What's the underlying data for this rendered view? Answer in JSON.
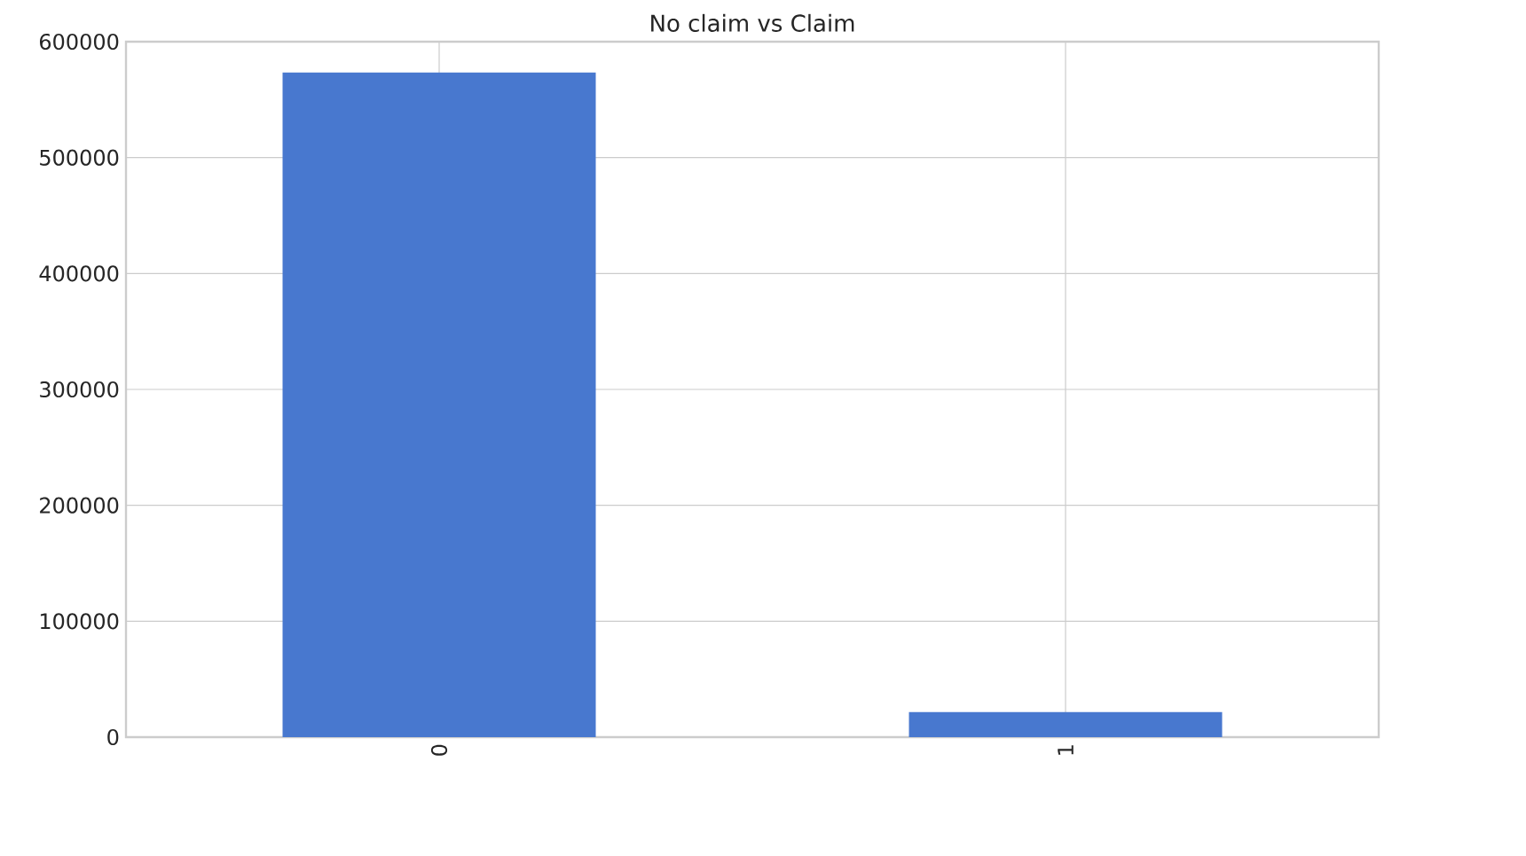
{
  "chart_data": {
    "type": "bar",
    "title": "No claim vs Claim",
    "categories": [
      "0",
      "1"
    ],
    "values": [
      573500,
      21700
    ],
    "color": "#4878cf",
    "ylim": [
      0,
      600000
    ],
    "yticks": [
      0,
      100000,
      200000,
      300000,
      400000,
      500000,
      600000
    ],
    "grid": true
  }
}
